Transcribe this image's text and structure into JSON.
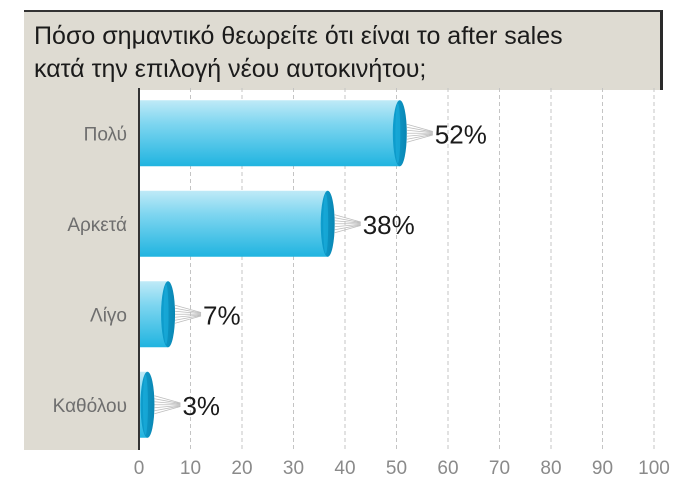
{
  "title": "Πόσο σημαντικό θεωρείτε ότι είναι το after sales\nκατά την επιλογή νέου αυτοκινήτου;",
  "chart_data": {
    "type": "bar",
    "orientation": "horizontal",
    "title": "Πόσο σημαντικό θεωρείτε ότι είναι το after sales κατά την επιλογή νέου αυτοκινήτου;",
    "categories": [
      "Πολύ",
      "Αρκετά",
      "Λίγο",
      "Καθόλου"
    ],
    "values": [
      52,
      38,
      7,
      3
    ],
    "value_labels": [
      "52%",
      "38%",
      "7%",
      "3%"
    ],
    "xlim": [
      0,
      100
    ],
    "xticks": [
      "0",
      "10",
      "20",
      "30",
      "40",
      "50",
      "60",
      "70",
      "80",
      "90",
      "100"
    ],
    "grid": "vertical dashed",
    "bar_color": "#3cc0e6"
  }
}
